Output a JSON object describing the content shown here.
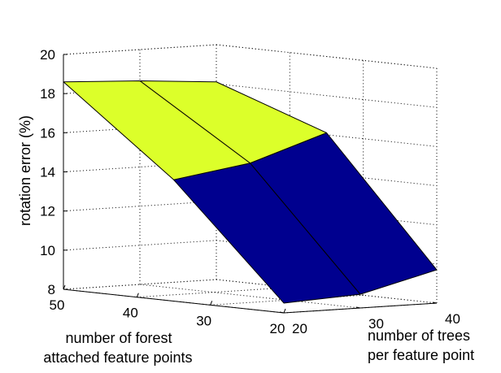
{
  "chart_data": {
    "type": "surface",
    "zlabel": "rotation error (%)",
    "xlabel_lines": [
      "number of forest",
      "attached feature points"
    ],
    "ylabel_lines": [
      "number of trees",
      "per feature point"
    ],
    "x_ticks": [
      50,
      40,
      30,
      20
    ],
    "y_ticks": [
      20,
      30,
      40
    ],
    "z_ticks": [
      8,
      10,
      12,
      14,
      16,
      18,
      20
    ],
    "zlim": [
      8,
      20
    ],
    "grid": true,
    "colormap": "jet",
    "forest_points": [
      50,
      35,
      20
    ],
    "trees_per_point": [
      20,
      30,
      40
    ],
    "z_values": [
      [
        18.6,
        18.4,
        18.1
      ],
      [
        14.2,
        14.8,
        16.1
      ],
      [
        8.5,
        8.7,
        9.7
      ]
    ],
    "band_colors": [
      "#00008f",
      "#00c8ff",
      "#dcff2a"
    ]
  }
}
